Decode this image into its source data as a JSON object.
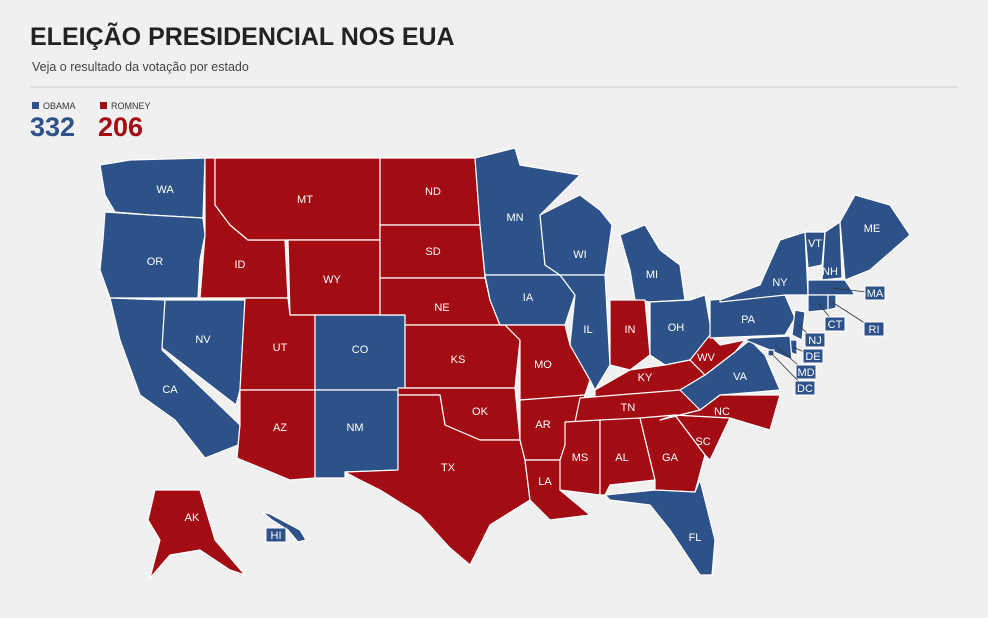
{
  "header": {
    "title": "ELEIÇÃO PRESIDENCIAL NOS EUA",
    "subtitle": "Veja o resultado da votação por estado"
  },
  "legend": [
    {
      "name": "OBAMA",
      "votes": 332,
      "color": "#2c5289"
    },
    {
      "name": "ROMNEY",
      "votes": 206,
      "color": "#a30c13"
    }
  ],
  "states": [
    {
      "abbr": "WA",
      "winner": 0
    },
    {
      "abbr": "OR",
      "winner": 0
    },
    {
      "abbr": "CA",
      "winner": 0
    },
    {
      "abbr": "NV",
      "winner": 0
    },
    {
      "abbr": "ID",
      "winner": 1
    },
    {
      "abbr": "MT",
      "winner": 1
    },
    {
      "abbr": "WY",
      "winner": 1
    },
    {
      "abbr": "UT",
      "winner": 1
    },
    {
      "abbr": "CO",
      "winner": 0
    },
    {
      "abbr": "AZ",
      "winner": 1
    },
    {
      "abbr": "NM",
      "winner": 0
    },
    {
      "abbr": "ND",
      "winner": 1
    },
    {
      "abbr": "SD",
      "winner": 1
    },
    {
      "abbr": "NE",
      "winner": 1
    },
    {
      "abbr": "KS",
      "winner": 1
    },
    {
      "abbr": "OK",
      "winner": 1
    },
    {
      "abbr": "TX",
      "winner": 1
    },
    {
      "abbr": "MN",
      "winner": 0
    },
    {
      "abbr": "IA",
      "winner": 0
    },
    {
      "abbr": "MO",
      "winner": 1
    },
    {
      "abbr": "AR",
      "winner": 1
    },
    {
      "abbr": "LA",
      "winner": 1
    },
    {
      "abbr": "WI",
      "winner": 0
    },
    {
      "abbr": "IL",
      "winner": 0
    },
    {
      "abbr": "MI",
      "winner": 0
    },
    {
      "abbr": "IN",
      "winner": 1
    },
    {
      "abbr": "OH",
      "winner": 0
    },
    {
      "abbr": "KY",
      "winner": 1
    },
    {
      "abbr": "TN",
      "winner": 1
    },
    {
      "abbr": "MS",
      "winner": 1
    },
    {
      "abbr": "AL",
      "winner": 1
    },
    {
      "abbr": "GA",
      "winner": 1
    },
    {
      "abbr": "FL",
      "winner": 0
    },
    {
      "abbr": "SC",
      "winner": 1
    },
    {
      "abbr": "NC",
      "winner": 1
    },
    {
      "abbr": "VA",
      "winner": 0
    },
    {
      "abbr": "WV",
      "winner": 1
    },
    {
      "abbr": "PA",
      "winner": 0
    },
    {
      "abbr": "NY",
      "winner": 0
    },
    {
      "abbr": "VT",
      "winner": 0
    },
    {
      "abbr": "NH",
      "winner": 0
    },
    {
      "abbr": "ME",
      "winner": 0
    },
    {
      "abbr": "MA",
      "winner": 0
    },
    {
      "abbr": "CT",
      "winner": 0
    },
    {
      "abbr": "RI",
      "winner": 0
    },
    {
      "abbr": "NJ",
      "winner": 0
    },
    {
      "abbr": "DE",
      "winner": 0
    },
    {
      "abbr": "MD",
      "winner": 0
    },
    {
      "abbr": "DC",
      "winner": 0
    },
    {
      "abbr": "AK",
      "winner": 1
    },
    {
      "abbr": "HI",
      "winner": 0
    }
  ]
}
